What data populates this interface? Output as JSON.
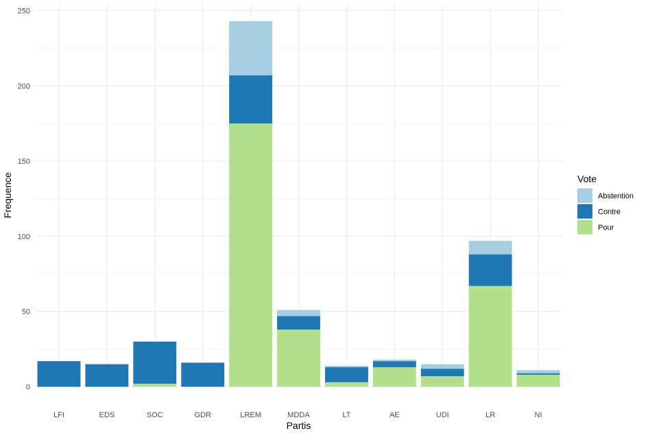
{
  "chart_data": {
    "type": "bar",
    "stacked": true,
    "xlabel": "Partis",
    "ylabel": "Frequence",
    "categories": [
      "LFI",
      "EDS",
      "SOC",
      "GDR",
      "LREM",
      "MDDA",
      "LT",
      "AE",
      "UDI",
      "LR",
      "NI"
    ],
    "series": [
      {
        "name": "Pour",
        "color": "#B2DF8A",
        "values": [
          0,
          0,
          2,
          0,
          175,
          38,
          3,
          13,
          7,
          67,
          8
        ]
      },
      {
        "name": "Contre",
        "color": "#1F78B4",
        "values": [
          17,
          15,
          28,
          16,
          32,
          9,
          10,
          4,
          5,
          21,
          1
        ]
      },
      {
        "name": "Abstention",
        "color": "#A6CEE3",
        "values": [
          0,
          0,
          0,
          0,
          36,
          4,
          1,
          1,
          3,
          9,
          2
        ]
      }
    ],
    "ylim": [
      0,
      250
    ],
    "yticks": [
      0,
      50,
      100,
      150,
      200,
      250
    ],
    "grid": true,
    "legend": {
      "title": "Vote",
      "placement": "right",
      "entries": [
        "Abstention",
        "Contre",
        "Pour"
      ]
    }
  }
}
